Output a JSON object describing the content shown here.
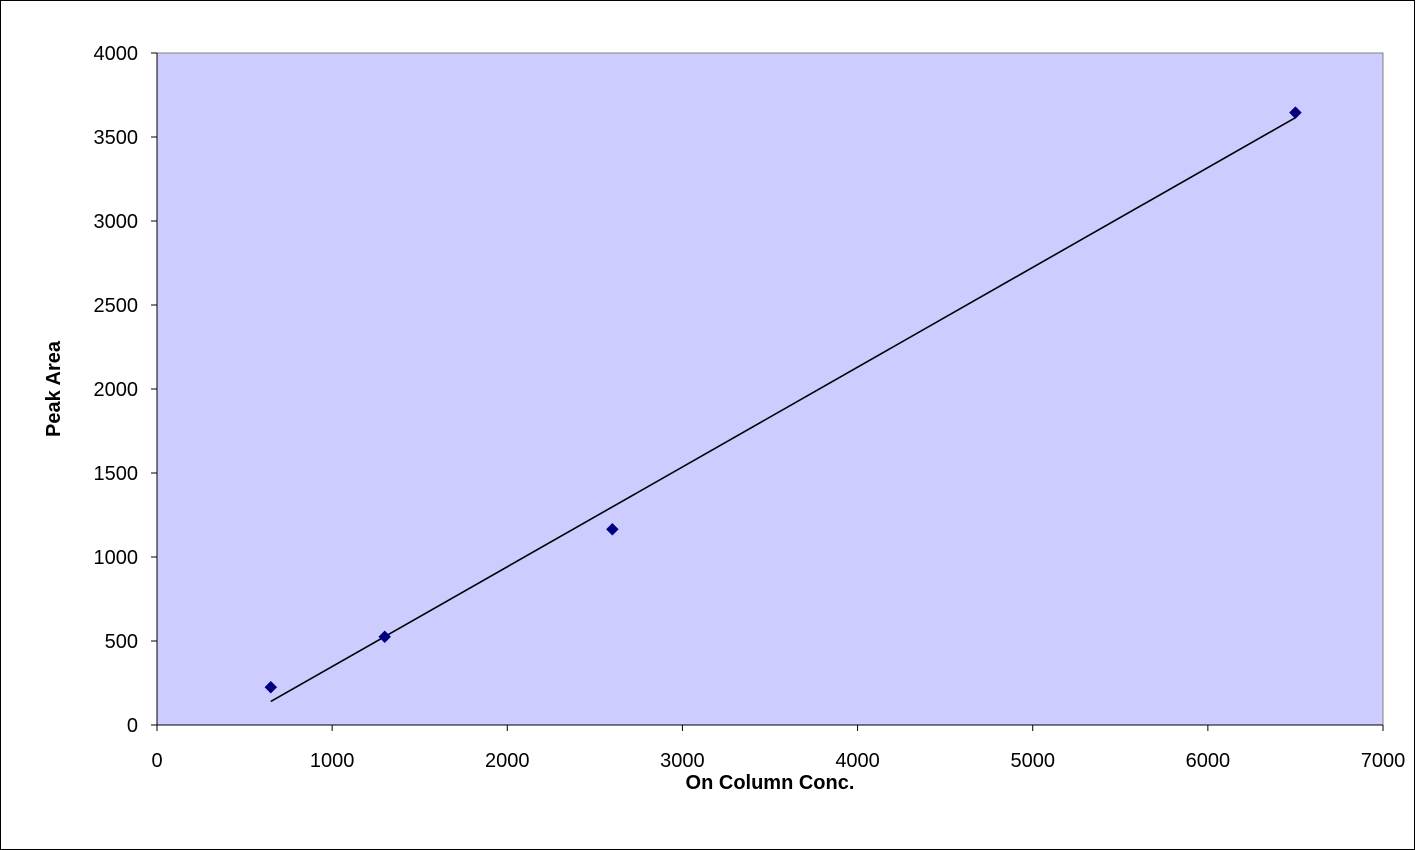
{
  "chart_data": {
    "type": "scatter",
    "title": "",
    "xlabel": "On Column Conc.",
    "ylabel": "Peak Area",
    "xlim": [
      0,
      7000
    ],
    "ylim": [
      0,
      4000
    ],
    "x_ticks": [
      0,
      1000,
      2000,
      3000,
      4000,
      5000,
      6000,
      7000
    ],
    "y_ticks": [
      0,
      500,
      1000,
      1500,
      2000,
      2500,
      3000,
      3500,
      4000
    ],
    "grid": false,
    "legend": "none",
    "series": [
      {
        "marker": "diamond",
        "points": [
          {
            "x": 650,
            "y": 225
          },
          {
            "x": 1300,
            "y": 525
          },
          {
            "x": 2600,
            "y": 1165
          },
          {
            "x": 6500,
            "y": 3645
          }
        ]
      }
    ],
    "trendline": {
      "type": "linear",
      "start": {
        "x": 650,
        "y": 140
      },
      "end": {
        "x": 6500,
        "y": 3615
      }
    },
    "colors": {
      "plot_background": "#ccccff",
      "marker": "#000080",
      "trendline": "#000000",
      "axis": "#000000",
      "frame": "#000000"
    }
  }
}
